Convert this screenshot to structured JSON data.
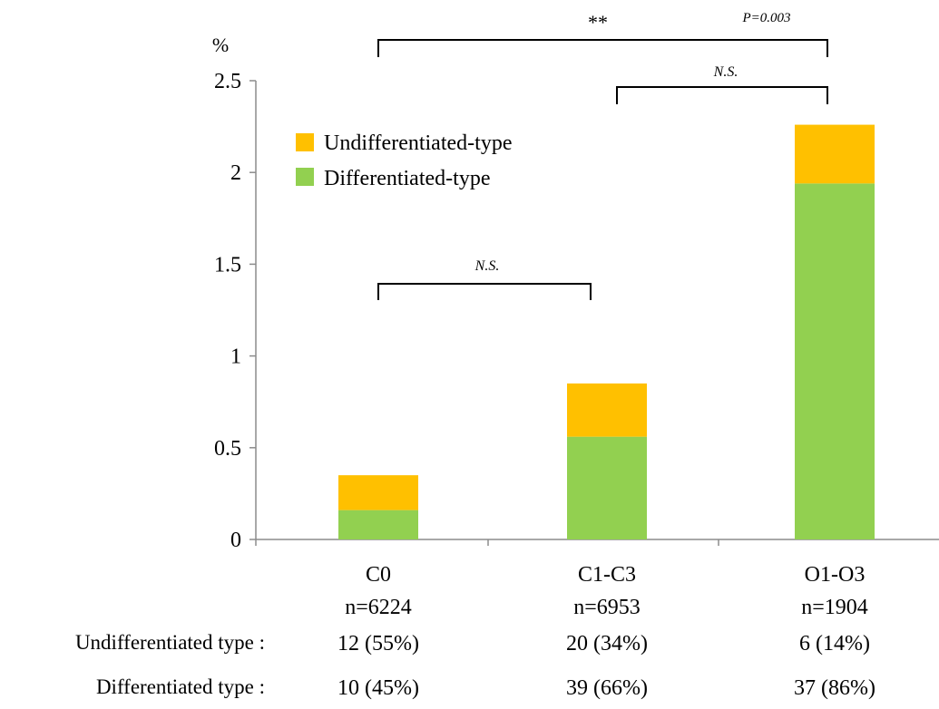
{
  "chart_data": {
    "type": "bar",
    "stacked": true,
    "ylabel": "%",
    "ylim": [
      0,
      2.5
    ],
    "yticks": [
      "0",
      "0.5",
      "1",
      "1.5",
      "2",
      "2.5"
    ],
    "categories": [
      "C0",
      "C1-C3",
      "O1-O3"
    ],
    "n_labels": [
      "n=6224",
      "n=6953",
      "n=1904"
    ],
    "series": [
      {
        "name": "Differentiated-type",
        "color": "#92d050",
        "values": [
          0.16,
          0.56,
          1.94
        ]
      },
      {
        "name": "Undifferentiated-type",
        "color": "#ffc000",
        "values": [
          0.19,
          0.29,
          0.32
        ]
      }
    ],
    "legend": {
      "position": "top-left",
      "items": [
        "Undifferentiated-type",
        "Differentiated-type"
      ]
    },
    "significance": [
      {
        "from": "C0",
        "to": "O1-O3",
        "label": "**",
        "pvalue": "P=0.003"
      },
      {
        "from": "C1-C3",
        "to": "O1-O3",
        "label": "N.S."
      },
      {
        "from": "C0",
        "to": "C1-C3",
        "label": "N.S."
      }
    ],
    "table": {
      "rows": [
        {
          "label": "Undifferentiated type :",
          "values": [
            "12 (55%)",
            "20 (34%)",
            "6 (14%)"
          ]
        },
        {
          "label": "Differentiated type :",
          "values": [
            "10 (45%)",
            "39 (66%)",
            "37 (86%)"
          ]
        }
      ]
    }
  }
}
